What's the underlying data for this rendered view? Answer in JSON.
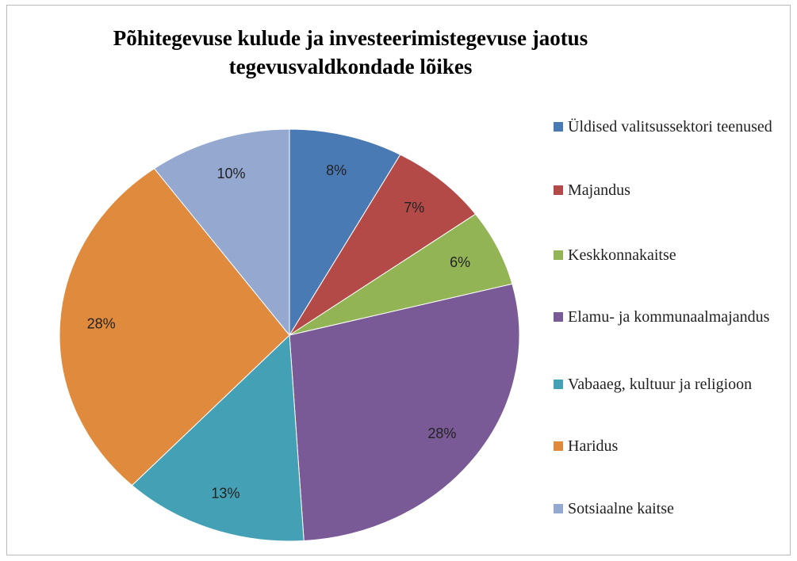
{
  "chart_data": {
    "type": "pie",
    "title": [
      "Põhitegevuse kulude ja investeerimistegevuse jaotus",
      "tegevusvaldkondade lõikes"
    ],
    "categories": [
      "Üldised valitsussektori teenused",
      "Majandus",
      "Keskkonnakaitse",
      "Elamu- ja kommunaalmajandus",
      "Vabaaeg, kultuur ja religioon",
      "Haridus",
      "Sotsiaalne kaitse"
    ],
    "values": [
      8,
      7,
      6,
      28,
      13,
      28,
      10
    ],
    "value_labels": [
      "8%",
      "7%",
      "6%",
      "28%",
      "13%",
      "28%",
      "10%"
    ],
    "colors": [
      "#4a7ab4",
      "#b44a47",
      "#93b454",
      "#7a5a96",
      "#44a0b4",
      "#e08a3e",
      "#94a8d0"
    ],
    "legend": "right"
  }
}
